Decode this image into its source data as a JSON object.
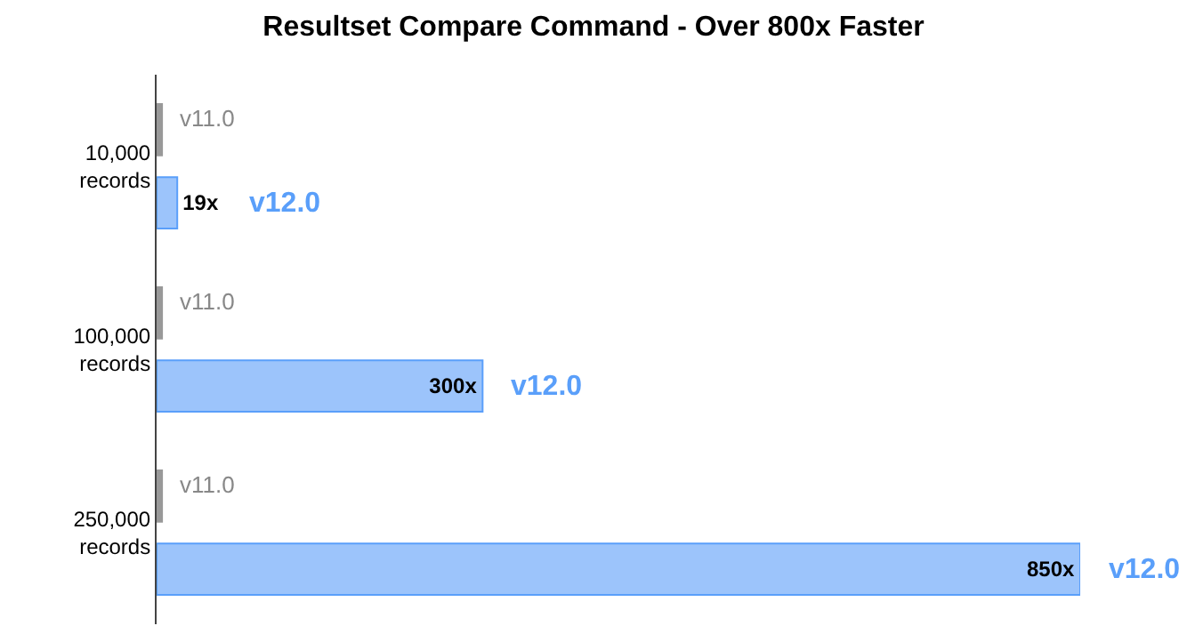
{
  "chart_data": {
    "type": "bar",
    "orientation": "horizontal",
    "title": "Resultset Compare Command - Over 800x Faster",
    "categories": [
      "10,000\nrecords",
      "100,000\nrecords",
      "250,000\nrecords"
    ],
    "series": [
      {
        "name": "v11.0",
        "color": "#999999",
        "values": [
          5,
          5,
          5
        ]
      },
      {
        "name": "v12.0",
        "color": "#9cc4fb",
        "values": [
          19,
          300,
          850
        ],
        "value_labels": [
          "19x",
          "300x",
          "850x"
        ]
      }
    ],
    "tick_labels": "y",
    "legend": false
  }
}
